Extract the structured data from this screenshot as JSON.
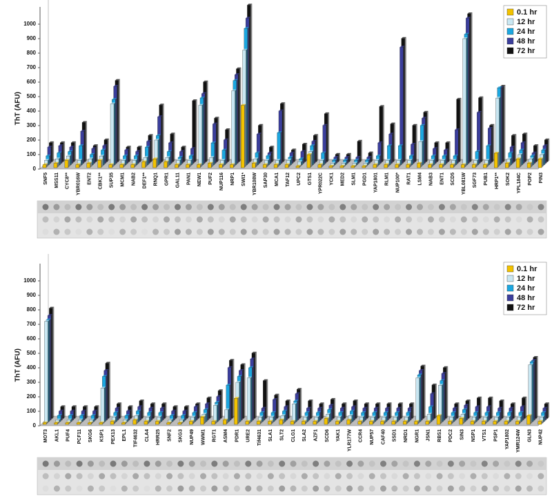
{
  "chart_data": [
    {
      "type": "bar",
      "y_label": "ThT (AFU)",
      "ylim": [
        0,
        1100
      ],
      "yticks": [
        0,
        100,
        200,
        300,
        400,
        500,
        600,
        700,
        800,
        900,
        1000
      ],
      "legend": "upper right",
      "highlighted": [
        6,
        10,
        14,
        18
      ],
      "highlight_color": "#d0312d",
      "categories": [
        "SNF5",
        "MSS11",
        "CYC8**",
        "YBR016W",
        "ENT2",
        "CBK1**",
        "SUP35",
        "MCM1",
        "NAB2",
        "DEF1**",
        "RNQ1",
        "GPR1",
        "GAL11",
        "PAN1",
        "NEW1",
        "PUF2",
        "NUP116",
        "NRP1",
        "SWI1*",
        "YBR108W",
        "SAP30",
        "MCA1",
        "TAF12",
        "UPC2",
        "GTS1",
        "YPR022C",
        "YCK1",
        "MED2",
        "SLM1",
        "PGD1",
        "YAP1801",
        "RLM1",
        "NUP100*",
        "RAT1",
        "LSM4",
        "NAB3",
        "ENT1",
        "SCD5",
        "YBL081W",
        "SGF73",
        "PUB1",
        "HRP1**",
        "SOK2",
        "YPL184C",
        "POP2",
        "PIN3"
      ],
      "series": [
        {
          "name": "0.1 hr",
          "color": "#f2c200",
          "values": [
            20,
            30,
            50,
            20,
            30,
            50,
            20,
            20,
            20,
            40,
            60,
            40,
            20,
            20,
            20,
            30,
            20,
            20,
            430,
            30,
            20,
            20,
            20,
            10,
            90,
            20,
            10,
            10,
            10,
            10,
            20,
            20,
            20,
            20,
            30,
            20,
            20,
            20,
            20,
            20,
            20,
            100,
            30,
            60,
            30,
            60
          ]
        },
        {
          "name": "12 hr",
          "color": "#c9e7f2",
          "values": [
            40,
            50,
            70,
            40,
            50,
            70,
            430,
            40,
            40,
            60,
            180,
            60,
            40,
            40,
            420,
            60,
            40,
            520,
            800,
            50,
            40,
            40,
            40,
            30,
            100,
            40,
            20,
            20,
            20,
            20,
            40,
            40,
            40,
            40,
            170,
            40,
            40,
            40,
            880,
            40,
            40,
            470,
            50,
            80,
            50,
            80
          ]
        },
        {
          "name": "24 hr",
          "color": "#1ca7e0",
          "values": [
            60,
            80,
            90,
            130,
            70,
            100,
            450,
            60,
            60,
            120,
            200,
            90,
            50,
            60,
            460,
            150,
            100,
            580,
            940,
            80,
            60,
            220,
            50,
            40,
            130,
            80,
            30,
            30,
            30,
            30,
            60,
            130,
            130,
            60,
            270,
            60,
            60,
            60,
            900,
            90,
            130,
            530,
            80,
            100,
            60,
            100
          ]
        },
        {
          "name": "48 hr",
          "color": "#3b3e9c",
          "values": [
            110,
            120,
            110,
            220,
            100,
            120,
            530,
            90,
            80,
            150,
            320,
            140,
            80,
            100,
            480,
            270,
            160,
            610,
            1000,
            200,
            70,
            360,
            70,
            80,
            150,
            260,
            40,
            40,
            40,
            40,
            140,
            200,
            800,
            130,
            310,
            100,
            90,
            230,
            1000,
            350,
            240,
            520,
            110,
            140,
            70,
            120
          ]
        },
        {
          "name": "72 hr",
          "color": "#111111",
          "values": [
            130,
            130,
            130,
            270,
            110,
            150,
            560,
            100,
            100,
            180,
            390,
            190,
            100,
            420,
            550,
            300,
            220,
            640,
            1080,
            250,
            100,
            400,
            80,
            120,
            180,
            330,
            50,
            50,
            140,
            60,
            380,
            260,
            850,
            250,
            340,
            130,
            130,
            430,
            1020,
            440,
            250,
            520,
            180,
            190,
            110,
            150
          ]
        }
      ]
    },
    {
      "type": "bar",
      "y_label": "ThT (AFU)",
      "ylim": [
        0,
        1100
      ],
      "yticks": [
        0,
        100,
        200,
        300,
        400,
        500,
        600,
        700,
        800,
        900,
        1000
      ],
      "legend": "upper right",
      "highlighted": [
        18
      ],
      "highlight_color": "#d0312d",
      "categories": [
        "MOT3",
        "AKL1",
        "PUF4",
        "PCF11",
        "SKG6",
        "KSP1",
        "PEX13",
        "EPL1",
        "TIF4632",
        "CLA4",
        "HRR25",
        "SNF2",
        "SKG3",
        "NUP49",
        "WWM1",
        "RGT1",
        "ASM4",
        "PDR1",
        "URE2",
        "Tif4631",
        "SLA1",
        "SLT2",
        "CLG1",
        "SLA2",
        "AZF1",
        "SCD6",
        "YAK1",
        "YLR177W",
        "CCR4",
        "NUP57",
        "CAF40",
        "SSD1",
        "NRD1",
        "NGR1",
        "JSN1",
        "RBS1",
        "PDC2",
        "SIN3",
        "NSP1",
        "VTS1",
        "PSP1",
        "YAP1802",
        "YMR124W",
        "GLN3",
        "NUP42"
      ],
      "series": [
        {
          "name": "0.1 hr",
          "color": "#f2c200",
          "values": [
            10,
            10,
            10,
            10,
            10,
            10,
            20,
            10,
            30,
            20,
            20,
            10,
            10,
            20,
            50,
            20,
            30,
            180,
            20,
            20,
            20,
            30,
            20,
            20,
            20,
            40,
            20,
            30,
            20,
            20,
            20,
            20,
            20,
            20,
            20,
            60,
            20,
            40,
            20,
            20,
            20,
            20,
            20,
            60,
            20
          ]
        },
        {
          "name": "12 hr",
          "color": "#c9e7f2",
          "values": [
            700,
            20,
            20,
            20,
            20,
            240,
            40,
            20,
            50,
            40,
            40,
            20,
            20,
            40,
            60,
            120,
            90,
            280,
            310,
            40,
            40,
            50,
            130,
            40,
            40,
            60,
            40,
            50,
            40,
            40,
            40,
            40,
            40,
            310,
            60,
            260,
            40,
            60,
            40,
            40,
            40,
            40,
            40,
            400,
            40
          ]
        },
        {
          "name": "24 hr",
          "color": "#1ca7e0",
          "values": [
            700,
            40,
            40,
            40,
            40,
            310,
            60,
            40,
            70,
            60,
            60,
            40,
            40,
            60,
            80,
            130,
            250,
            310,
            370,
            60,
            60,
            70,
            140,
            60,
            60,
            80,
            60,
            70,
            60,
            60,
            60,
            60,
            60,
            320,
            100,
            280,
            60,
            80,
            60,
            60,
            60,
            60,
            60,
            410,
            60
          ]
        },
        {
          "name": "48 hr",
          "color": "#3b3e9c",
          "values": [
            720,
            60,
            60,
            60,
            60,
            340,
            80,
            60,
            90,
            80,
            80,
            60,
            60,
            90,
            110,
            160,
            360,
            340,
            420,
            80,
            140,
            90,
            180,
            80,
            80,
            100,
            80,
            90,
            80,
            80,
            80,
            80,
            80,
            340,
            180,
            320,
            80,
            100,
            90,
            90,
            80,
            80,
            90,
            410,
            80
          ]
        },
        {
          "name": "72 hr",
          "color": "#111111",
          "values": [
            760,
            80,
            80,
            80,
            80,
            380,
            100,
            80,
            120,
            100,
            100,
            80,
            80,
            100,
            140,
            190,
            400,
            370,
            450,
            260,
            160,
            120,
            200,
            120,
            100,
            130,
            100,
            120,
            100,
            100,
            100,
            100,
            100,
            360,
            230,
            350,
            100,
            120,
            140,
            140,
            120,
            100,
            140,
            420,
            100
          ]
        }
      ]
    }
  ]
}
